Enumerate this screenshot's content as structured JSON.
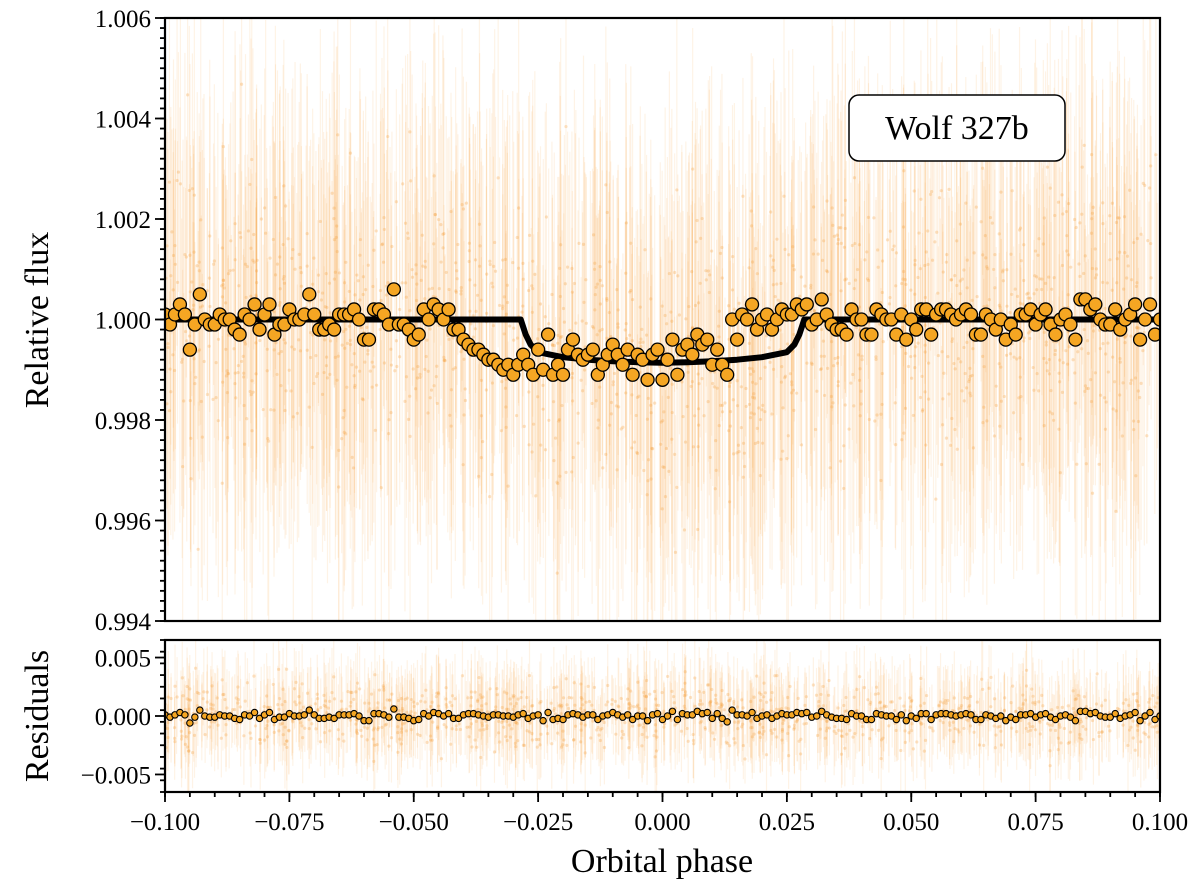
{
  "chart_data": [
    {
      "type": "scatter",
      "panel": "main",
      "title": "",
      "label_box": "Wolf 327b",
      "xlabel": "",
      "ylabel": "Relative flux",
      "xlim": [
        -0.1,
        0.1
      ],
      "ylim": [
        0.994,
        1.006
      ],
      "yticks": [
        0.994,
        0.996,
        0.998,
        1.0,
        1.002,
        1.004,
        1.006
      ],
      "ytick_labels": [
        "0.994",
        "0.996",
        "0.998",
        "1.000",
        "1.002",
        "1.004",
        "1.006"
      ],
      "yminor_step": 0.0002,
      "grid": false,
      "series": [
        {
          "name": "Raw flux",
          "kind": "scatter-cloud",
          "color": "#f5a341",
          "center": 1.0,
          "scatter_sigma": 0.0025,
          "count": 1600
        },
        {
          "name": "Binned flux",
          "kind": "scatter",
          "color": "#f5a623",
          "edge_color": "#000000",
          "x": [
            -0.1,
            -0.099,
            -0.098,
            -0.097,
            -0.096,
            -0.095,
            -0.094,
            -0.093,
            -0.092,
            -0.091,
            -0.09,
            -0.089,
            -0.088,
            -0.087,
            -0.086,
            -0.085,
            -0.084,
            -0.083,
            -0.082,
            -0.081,
            -0.08,
            -0.079,
            -0.078,
            -0.077,
            -0.076,
            -0.075,
            -0.074,
            -0.073,
            -0.072,
            -0.071,
            -0.07,
            -0.069,
            -0.068,
            -0.067,
            -0.066,
            -0.065,
            -0.064,
            -0.063,
            -0.062,
            -0.061,
            -0.06,
            -0.059,
            -0.058,
            -0.057,
            -0.056,
            -0.055,
            -0.054,
            -0.053,
            -0.052,
            -0.051,
            -0.05,
            -0.049,
            -0.048,
            -0.047,
            -0.046,
            -0.045,
            -0.044,
            -0.043,
            -0.042,
            -0.041,
            -0.04,
            -0.039,
            -0.038,
            -0.037,
            -0.036,
            -0.035,
            -0.034,
            -0.033,
            -0.032,
            -0.031,
            -0.03,
            -0.029,
            -0.028,
            -0.027,
            -0.026,
            -0.025,
            -0.024,
            -0.023,
            -0.022,
            -0.021,
            -0.02,
            -0.019,
            -0.018,
            -0.017,
            -0.016,
            -0.015,
            -0.014,
            -0.013,
            -0.012,
            -0.011,
            -0.01,
            -0.009,
            -0.008,
            -0.007,
            -0.006,
            -0.005,
            -0.004,
            -0.003,
            -0.002,
            -0.001,
            0.0,
            0.001,
            0.002,
            0.003,
            0.004,
            0.005,
            0.006,
            0.007,
            0.008,
            0.009,
            0.01,
            0.011,
            0.012,
            0.013,
            0.014,
            0.015,
            0.016,
            0.017,
            0.018,
            0.019,
            0.02,
            0.021,
            0.022,
            0.023,
            0.024,
            0.025,
            0.026,
            0.027,
            0.028,
            0.029,
            0.03,
            0.031,
            0.032,
            0.033,
            0.034,
            0.035,
            0.036,
            0.037,
            0.038,
            0.039,
            0.04,
            0.041,
            0.042,
            0.043,
            0.044,
            0.045,
            0.046,
            0.047,
            0.048,
            0.049,
            0.05,
            0.051,
            0.052,
            0.053,
            0.054,
            0.055,
            0.056,
            0.057,
            0.058,
            0.059,
            0.06,
            0.061,
            0.062,
            0.063,
            0.064,
            0.065,
            0.066,
            0.067,
            0.068,
            0.069,
            0.07,
            0.071,
            0.072,
            0.073,
            0.074,
            0.075,
            0.076,
            0.077,
            0.078,
            0.079,
            0.08,
            0.081,
            0.082,
            0.083,
            0.084,
            0.085,
            0.086,
            0.087,
            0.088,
            0.089,
            0.09,
            0.091,
            0.092,
            0.093,
            0.094,
            0.095,
            0.096,
            0.097,
            0.098,
            0.099,
            0.1
          ],
          "y": [
            1.0001,
            0.9999,
            1.0001,
            1.0003,
            1.0001,
            0.9994,
            0.9999,
            1.0005,
            1.0,
            0.9999,
            0.9999,
            1.0001,
            1.0,
            1.0,
            0.9998,
            0.9997,
            1.0001,
            1.0,
            1.0003,
            0.9998,
            1.0001,
            1.0003,
            0.9997,
            0.9999,
            0.9999,
            1.0002,
            1.0,
            1.0,
            1.0001,
            1.0005,
            1.0001,
            0.9998,
            0.9998,
            0.9999,
            0.9998,
            1.0001,
            1.0001,
            1.0001,
            1.0002,
            1.0,
            0.9996,
            0.9996,
            1.0002,
            1.0002,
            1.0001,
            0.9999,
            1.0006,
            0.9999,
            0.9999,
            0.9998,
            0.9996,
            0.9997,
            1.0002,
            1.0,
            1.0003,
            1.0002,
            1.0,
            1.0002,
            0.9998,
            0.9998,
            0.9996,
            0.9995,
            0.9994,
            0.9994,
            0.9993,
            0.9992,
            0.9992,
            0.9991,
            0.999,
            0.9991,
            0.9989,
            0.9991,
            0.9993,
            0.9991,
            0.9989,
            0.9994,
            0.999,
            0.9997,
            0.9989,
            0.9991,
            0.9989,
            0.9994,
            0.9996,
            0.9993,
            0.9992,
            0.9993,
            0.9994,
            0.9989,
            0.9991,
            0.9993,
            0.9995,
            0.9993,
            0.9991,
            0.9994,
            0.9989,
            0.9993,
            0.9992,
            0.9988,
            0.9993,
            0.9994,
            0.9988,
            0.9992,
            0.9996,
            0.9989,
            0.9994,
            0.9995,
            0.9993,
            0.9997,
            0.9995,
            0.9996,
            0.9991,
            0.9994,
            0.9991,
            0.9989,
            1.0,
            0.9996,
            1.0001,
            1.0,
            1.0003,
            0.9998,
            1.0,
            1.0001,
            0.9998,
            1.0,
            1.0002,
            1.0001,
            1.0001,
            1.0003,
            1.0002,
            1.0003,
            0.9999,
            1.0,
            1.0004,
            1.0001,
            0.9999,
            0.9998,
            0.9998,
            0.9997,
            1.0002,
            1.0,
            1.0,
            0.9997,
            0.9997,
            1.0002,
            1.0001,
            1.0,
            1.0,
            0.9997,
            1.0001,
            0.9996,
            1.0,
            0.9998,
            1.0002,
            1.0002,
            0.9997,
            1.0001,
            1.0002,
            1.0002,
            1.0001,
            1.0,
            1.0001,
            1.0002,
            1.0001,
            0.9997,
            0.9997,
            1.0001,
            1.0,
            0.9998,
            1.0,
            0.9996,
            0.9999,
            0.9997,
            1.0001,
            1.0001,
            1.0002,
            0.9999,
            1.0001,
            1.0002,
            0.9999,
            0.9997,
            1.0,
            1.0001,
            0.9999,
            0.9996,
            1.0004,
            1.0004,
            1.0002,
            1.0003,
            1.0,
            0.9999,
            0.9999,
            1.0002,
            0.9998,
            1.0,
            1.0001,
            1.0003,
            0.9996,
            1.0,
            1.0003,
            0.9997,
            1.0
          ]
        },
        {
          "name": "Transit model",
          "kind": "line",
          "color": "#000000",
          "x": [
            -0.1,
            -0.0285,
            -0.0275,
            -0.0265,
            -0.025,
            -0.02,
            -0.015,
            -0.01,
            -0.005,
            0.0,
            0.005,
            0.01,
            0.015,
            0.02,
            0.025,
            0.0265,
            0.0275,
            0.0285,
            0.1
          ],
          "y": [
            1.0,
            1.0,
            0.9997,
            0.9995,
            0.99935,
            0.99925,
            0.9992,
            0.99917,
            0.99915,
            0.99914,
            0.99915,
            0.99917,
            0.9992,
            0.99925,
            0.99935,
            0.9995,
            0.9997,
            1.0,
            1.0
          ]
        }
      ]
    },
    {
      "type": "scatter",
      "panel": "residuals",
      "title": "",
      "xlabel": "Orbital phase",
      "ylabel": "Residuals",
      "xlim": [
        -0.1,
        0.1
      ],
      "ylim": [
        -0.0065,
        0.0065
      ],
      "xticks": [
        -0.1,
        -0.075,
        -0.05,
        -0.025,
        0.0,
        0.025,
        0.05,
        0.075,
        0.1
      ],
      "xtick_labels": [
        "−0.100",
        "−0.075",
        "−0.050",
        "−0.025",
        "0.000",
        "0.025",
        "0.050",
        "0.075",
        "0.100"
      ],
      "xminor_step": 0.005,
      "yticks": [
        -0.005,
        0.0,
        0.005
      ],
      "ytick_labels": [
        "−0.005",
        "0.000",
        "0.005"
      ],
      "yminor_step": 0.001,
      "grid": false,
      "series": [
        {
          "name": "Raw residuals",
          "kind": "scatter-cloud",
          "color": "#f5a341",
          "center": 0.0,
          "scatter_sigma": 0.0025,
          "count": 1200
        },
        {
          "name": "Binned residuals",
          "kind": "scatter",
          "color": "#f5a623",
          "edge_color": "#000000",
          "x_from_panel": "main",
          "y": [
            0.0001,
            -0.0001,
            0.0001,
            0.0003,
            0.0001,
            -0.0006,
            -0.0001,
            0.0005,
            0.0,
            -0.0001,
            -0.0001,
            0.0001,
            0.0,
            0.0,
            -0.0002,
            -0.0003,
            0.0001,
            0.0,
            0.0003,
            -0.0002,
            0.0001,
            0.0003,
            -0.0003,
            -0.0001,
            -0.0001,
            0.0002,
            0.0,
            0.0,
            0.0001,
            0.0005,
            0.0001,
            -0.0002,
            -0.0002,
            -0.0001,
            -0.0002,
            0.0001,
            0.0001,
            0.0001,
            0.0002,
            0.0,
            -0.0004,
            -0.0004,
            0.0002,
            0.0002,
            0.0001,
            -0.0001,
            0.0006,
            -0.0001,
            -0.0001,
            -0.0002,
            -0.0004,
            -0.0003,
            0.0002,
            0.0,
            0.0003,
            0.0002,
            0.0,
            0.0002,
            -0.0002,
            -0.0002,
            0.0001,
            0.0002,
            0.0002,
            0.0001,
            0.0,
            -0.0001,
            0.0001,
            0.0001,
            0.0,
            0.0,
            -0.0001,
            0.0001,
            0.0002,
            -0.0002,
            0.0,
            0.0001,
            -0.0004,
            0.0003,
            -0.0003,
            -0.0002,
            -0.0003,
            0.0001,
            0.0002,
            0.0001,
            -0.0001,
            0.0001,
            0.0001,
            -0.0003,
            0.0,
            0.0001,
            0.0003,
            0.0001,
            -0.0001,
            0.0001,
            -0.0003,
            0.0,
            0.0,
            -0.0004,
            0.0001,
            0.0002,
            -0.0003,
            0.0,
            0.0004,
            -0.0003,
            0.0002,
            0.0001,
            0.0001,
            0.0004,
            0.0002,
            0.0003,
            -0.0002,
            0.0002,
            -0.0002,
            -0.0005,
            0.0005,
            0.0001,
            0.0001,
            0.0,
            0.0003,
            -0.0002,
            0.0,
            0.0001,
            -0.0002,
            0.0,
            0.0002,
            0.0001,
            0.0001,
            0.0003,
            0.0002,
            0.0003,
            -0.0001,
            0.0,
            0.0004,
            0.0001,
            -0.0001,
            -0.0002,
            -0.0002,
            -0.0003,
            0.0002,
            0.0,
            0.0,
            -0.0003,
            -0.0003,
            0.0002,
            0.0001,
            0.0,
            0.0,
            -0.0003,
            0.0001,
            -0.0004,
            0.0,
            -0.0002,
            0.0002,
            0.0002,
            -0.0003,
            0.0001,
            0.0002,
            0.0002,
            0.0001,
            0.0,
            0.0001,
            0.0002,
            0.0001,
            -0.0003,
            -0.0003,
            0.0001,
            0.0,
            -0.0002,
            0.0,
            -0.0004,
            -0.0001,
            -0.0003,
            0.0001,
            0.0001,
            0.0002,
            -0.0001,
            0.0001,
            0.0002,
            -0.0001,
            -0.0003,
            0.0,
            0.0001,
            -0.0001,
            -0.0004,
            0.0004,
            0.0004,
            0.0002,
            0.0003,
            0.0,
            -0.0001,
            -0.0001,
            0.0002,
            -0.0002,
            0.0,
            0.0001,
            0.0003,
            -0.0004,
            0.0,
            0.0003,
            -0.0003,
            0.0
          ]
        }
      ]
    }
  ]
}
